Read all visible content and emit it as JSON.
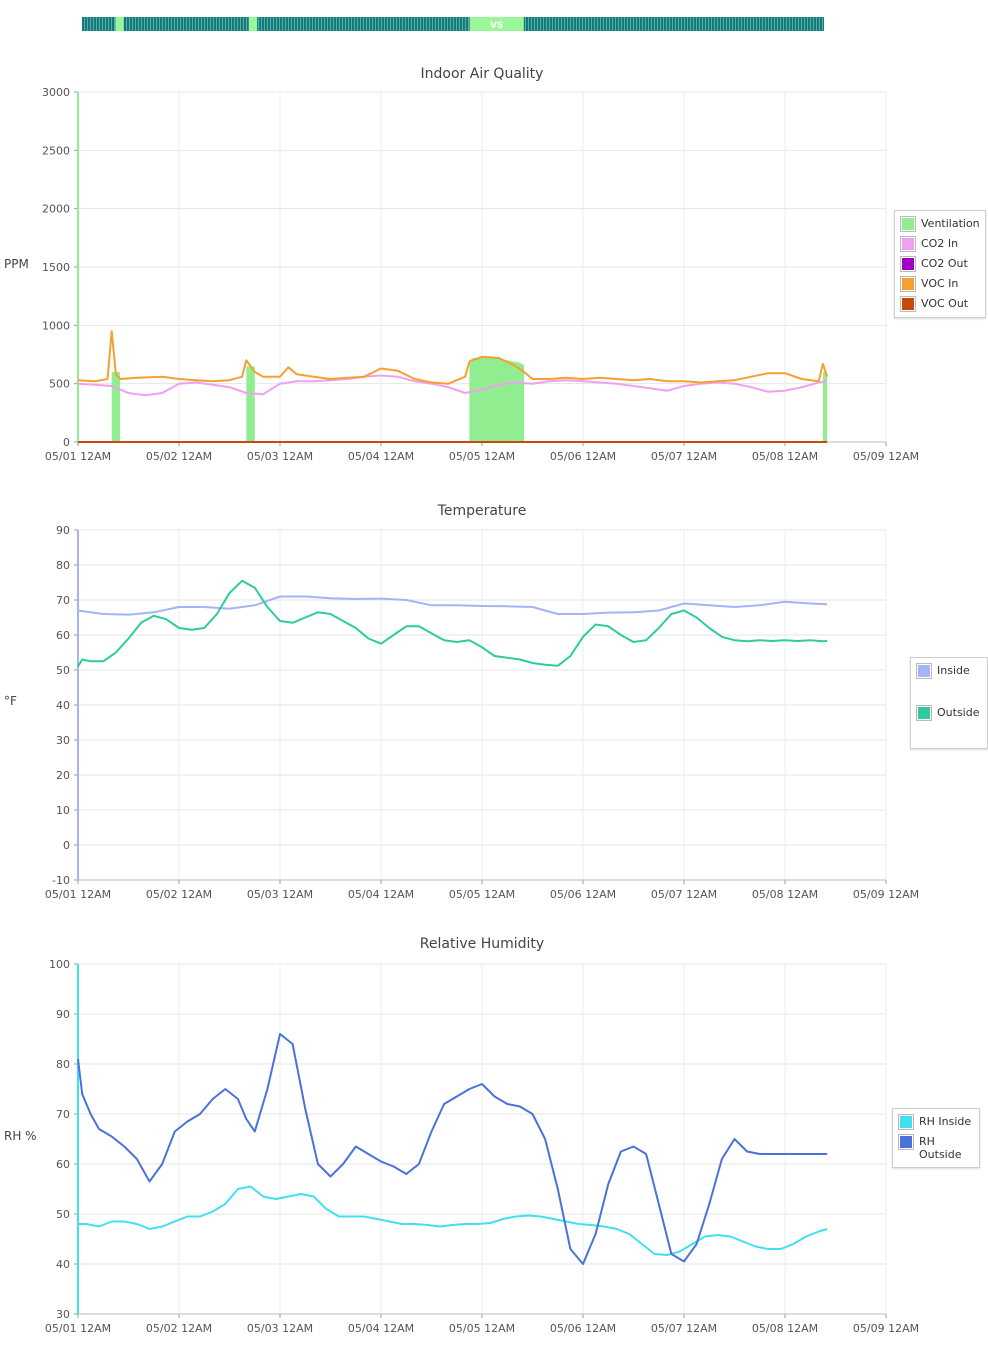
{
  "strip": {
    "label": "VS",
    "colors": {
      "off": "#0e7c78",
      "on": "#9af79a",
      "text": "#ffffff"
    },
    "on_ranges_hours": [
      [
        8,
        10
      ],
      [
        40,
        42
      ],
      [
        93,
        106
      ]
    ]
  },
  "chart_data": [
    {
      "type": "line",
      "title": "Indoor Air Quality",
      "ylabel": "PPM",
      "ylim": [
        0,
        3000
      ],
      "yticks": [
        "0",
        "500",
        "1000",
        "1500",
        "2000",
        "2500",
        "3000"
      ],
      "xlim": [
        "05/01 12AM",
        "05/09 12AM"
      ],
      "xticks": [
        "05/01 12AM",
        "05/02 12AM",
        "05/03 12AM",
        "05/04 12AM",
        "05/05 12AM",
        "05/06 12AM",
        "05/07 12AM",
        "05/08 12AM",
        "05/09 12AM"
      ],
      "grid": true,
      "legend": "right",
      "series": [
        {
          "name": "Ventilation",
          "color": "#90ee90",
          "kind": "area",
          "x_hours": [
            8,
            8,
            10,
            10,
            40,
            40,
            42,
            42,
            93,
            93,
            94,
            98,
            102,
            105,
            106,
            106,
            177,
            177,
            178,
            178
          ],
          "values": [
            0,
            600,
            600,
            0,
            0,
            650,
            650,
            0,
            0,
            700,
            720,
            730,
            700,
            680,
            660,
            0,
            0,
            600,
            600,
            0
          ]
        },
        {
          "name": "CO2 In",
          "color": "#f0a0f0",
          "kind": "line",
          "x_hours": [
            0,
            4,
            8,
            12,
            16,
            20,
            24,
            28,
            32,
            36,
            40,
            44,
            48,
            52,
            56,
            60,
            64,
            68,
            72,
            76,
            80,
            84,
            88,
            92,
            96,
            100,
            104,
            108,
            112,
            116,
            120,
            124,
            128,
            132,
            136,
            140,
            144,
            148,
            152,
            156,
            160,
            164,
            168,
            172,
            176,
            178
          ],
          "values": [
            500,
            490,
            480,
            420,
            400,
            420,
            500,
            510,
            490,
            470,
            420,
            410,
            500,
            520,
            520,
            530,
            540,
            560,
            570,
            560,
            520,
            500,
            470,
            420,
            450,
            490,
            510,
            500,
            520,
            530,
            520,
            510,
            500,
            480,
            460,
            440,
            480,
            500,
            510,
            500,
            470,
            430,
            440,
            470,
            510,
            520
          ]
        },
        {
          "name": "CO2 Out",
          "color": "#a000c0",
          "kind": "line",
          "x_hours": [
            0,
            178
          ],
          "values": [
            0,
            0
          ]
        },
        {
          "name": "VOC In",
          "color": "#f5a030",
          "kind": "line",
          "x_hours": [
            0,
            4,
            7,
            8,
            9,
            10,
            14,
            20,
            24,
            28,
            32,
            36,
            39,
            40,
            42,
            44,
            48,
            50,
            52,
            56,
            60,
            64,
            68,
            72,
            76,
            80,
            84,
            88,
            92,
            93,
            96,
            100,
            104,
            106,
            108,
            112,
            116,
            120,
            124,
            128,
            132,
            136,
            140,
            144,
            148,
            152,
            156,
            160,
            164,
            168,
            172,
            176,
            177,
            178
          ],
          "values": [
            530,
            520,
            540,
            950,
            580,
            540,
            550,
            560,
            540,
            530,
            520,
            530,
            560,
            700,
            600,
            560,
            560,
            640,
            580,
            560,
            540,
            550,
            560,
            630,
            610,
            540,
            510,
            500,
            560,
            690,
            730,
            720,
            650,
            600,
            540,
            540,
            550,
            540,
            550,
            540,
            530,
            540,
            520,
            520,
            510,
            520,
            530,
            560,
            590,
            590,
            540,
            520,
            670,
            560
          ]
        },
        {
          "name": "VOC Out",
          "color": "#c84a0a",
          "kind": "line",
          "x_hours": [
            0,
            178
          ],
          "values": [
            0,
            0
          ]
        }
      ]
    },
    {
      "type": "line",
      "title": "Temperature",
      "ylabel": "°F",
      "ylim": [
        -10,
        90
      ],
      "yticks": [
        "-10",
        "0",
        "10",
        "20",
        "30",
        "40",
        "50",
        "60",
        "70",
        "80",
        "90"
      ],
      "xlim": [
        "05/01 12AM",
        "05/09 12AM"
      ],
      "xticks": [
        "05/01 12AM",
        "05/02 12AM",
        "05/03 12AM",
        "05/04 12AM",
        "05/05 12AM",
        "05/06 12AM",
        "05/07 12AM",
        "05/08 12AM",
        "05/09 12AM"
      ],
      "grid": true,
      "legend": "right",
      "series": [
        {
          "name": "Inside",
          "color": "#a6b4f5",
          "kind": "line",
          "x_hours": [
            0,
            6,
            12,
            18,
            24,
            30,
            36,
            42,
            48,
            54,
            60,
            66,
            72,
            78,
            84,
            90,
            96,
            102,
            108,
            114,
            120,
            126,
            132,
            138,
            144,
            150,
            156,
            162,
            168,
            174,
            178
          ],
          "values": [
            67,
            66,
            65.8,
            66.5,
            68,
            68,
            67.5,
            68.5,
            71,
            71,
            70.5,
            70.3,
            70.4,
            70,
            68.5,
            68.5,
            68.3,
            68.2,
            68,
            66,
            66,
            66.4,
            66.5,
            67,
            69,
            68.5,
            68,
            68.5,
            69.5,
            69,
            68.8
          ]
        },
        {
          "name": "Outside",
          "color": "#2fcaa0",
          "kind": "line",
          "x_hours": [
            0,
            1,
            3,
            6,
            9,
            12,
            15,
            18,
            21,
            24,
            27,
            30,
            33,
            36,
            39,
            42,
            45,
            48,
            51,
            54,
            57,
            60,
            63,
            66,
            69,
            72,
            75,
            78,
            81,
            84,
            87,
            90,
            93,
            96,
            99,
            102,
            105,
            108,
            111,
            114,
            117,
            120,
            123,
            126,
            129,
            132,
            135,
            138,
            141,
            144,
            147,
            150,
            153,
            156,
            159,
            162,
            165,
            168,
            171,
            174,
            177,
            178
          ],
          "values": [
            51,
            53,
            52.5,
            52.5,
            55,
            59,
            63.5,
            65.5,
            64.5,
            62,
            61.5,
            62,
            66,
            72,
            75.5,
            73.5,
            68,
            64,
            63.5,
            65,
            66.5,
            66,
            64,
            62,
            59,
            57.5,
            60,
            62.5,
            62.5,
            60.5,
            58.5,
            58,
            58.5,
            56.5,
            54,
            53.5,
            53,
            52,
            51.5,
            51.2,
            54,
            59.5,
            63,
            62.5,
            60,
            58,
            58.5,
            62,
            66,
            67,
            65,
            62,
            59.5,
            58.5,
            58.2,
            58.5,
            58.3,
            58.5,
            58.3,
            58.5,
            58.2,
            58.3
          ]
        }
      ]
    },
    {
      "type": "line",
      "title": "Relative Humidity",
      "ylabel": "RH %",
      "ylim": [
        30,
        100
      ],
      "yticks": [
        "30",
        "40",
        "50",
        "60",
        "70",
        "80",
        "90",
        "100"
      ],
      "xlim": [
        "05/01 12AM",
        "05/09 12AM"
      ],
      "xticks": [
        "05/01 12AM",
        "05/02 12AM",
        "05/03 12AM",
        "05/04 12AM",
        "05/05 12AM",
        "05/06 12AM",
        "05/07 12AM",
        "05/08 12AM",
        "05/09 12AM"
      ],
      "grid": true,
      "legend": "right",
      "series": [
        {
          "name": "RH Inside",
          "color": "#40e0f0",
          "kind": "line",
          "x_hours": [
            0,
            2,
            5,
            8,
            11,
            14,
            17,
            20,
            23,
            26,
            29,
            32,
            35,
            38,
            41,
            44,
            47,
            50,
            53,
            56,
            59,
            62,
            65,
            68,
            71,
            74,
            77,
            80,
            83,
            86,
            89,
            92,
            95,
            98,
            101,
            104,
            107,
            110,
            113,
            116,
            119,
            122,
            125,
            128,
            131,
            134,
            137,
            140,
            143,
            146,
            149,
            152,
            155,
            158,
            161,
            164,
            167,
            170,
            173,
            176,
            178
          ],
          "values": [
            48,
            48,
            47.5,
            48.5,
            48.5,
            48,
            47,
            47.5,
            48.5,
            49.5,
            49.5,
            50.5,
            52,
            55,
            55.5,
            53.5,
            53,
            53.5,
            54,
            53.5,
            51,
            49.5,
            49.5,
            49.5,
            49,
            48.5,
            48,
            48,
            47.8,
            47.5,
            47.8,
            48,
            48,
            48.2,
            49,
            49.5,
            49.7,
            49.5,
            49,
            48.5,
            48,
            47.8,
            47.5,
            47,
            46,
            44,
            42,
            41.8,
            42.5,
            44,
            45.5,
            45.8,
            45.5,
            44.5,
            43.5,
            43,
            43,
            44,
            45.5,
            46.5,
            47
          ]
        },
        {
          "name": "RH Outside",
          "color": "#4a72d8",
          "kind": "line",
          "x_hours": [
            0,
            1,
            3,
            5,
            8,
            11,
            14,
            17,
            20,
            23,
            26,
            29,
            32,
            35,
            38,
            40,
            42,
            45,
            48,
            51,
            54,
            57,
            60,
            63,
            66,
            69,
            72,
            75,
            78,
            81,
            84,
            87,
            90,
            93,
            96,
            99,
            102,
            105,
            108,
            111,
            114,
            117,
            120,
            123,
            126,
            129,
            132,
            135,
            138,
            141,
            144,
            147,
            150,
            153,
            156,
            159,
            162,
            165,
            168,
            171,
            174,
            177,
            178
          ],
          "values": [
            81,
            74,
            70,
            67,
            65.5,
            63.5,
            61,
            56.5,
            60,
            66.5,
            68.5,
            70,
            73,
            75,
            73,
            69,
            66.5,
            75,
            86,
            84,
            71,
            60,
            57.5,
            60,
            63.5,
            62,
            60.5,
            59.5,
            58,
            60,
            66.5,
            72,
            73.5,
            75,
            76,
            73.5,
            72,
            71.5,
            70,
            65,
            55,
            43,
            40,
            46,
            56,
            62.5,
            63.5,
            62,
            52,
            42,
            40.5,
            44,
            52,
            61,
            65,
            62.5,
            62,
            62,
            62,
            62,
            62,
            62,
            62
          ]
        }
      ]
    }
  ]
}
